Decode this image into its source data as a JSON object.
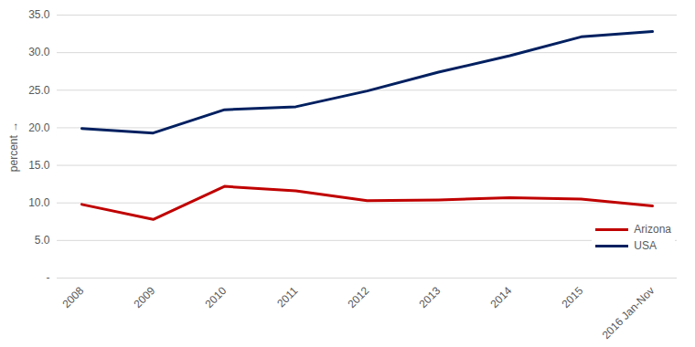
{
  "chart_data": {
    "type": "line",
    "y_label": "percent",
    "categories": [
      "2008",
      "2009",
      "2010",
      "2011",
      "2012",
      "2013",
      "2014",
      "2015",
      "2016 Jan-Nov"
    ],
    "series": [
      {
        "name": "Arizona",
        "color": "#c00000",
        "values": [
          9.8,
          7.8,
          12.2,
          11.6,
          10.3,
          10.4,
          10.7,
          10.5,
          9.6
        ]
      },
      {
        "name": "USA",
        "color": "#002060",
        "values": [
          19.9,
          19.3,
          22.4,
          22.8,
          24.9,
          27.4,
          29.6,
          32.1,
          32.8
        ]
      }
    ],
    "ylim": [
      0,
      35
    ],
    "yticks": [
      {
        "value": 0,
        "label": "-"
      },
      {
        "value": 5,
        "label": "5.0"
      },
      {
        "value": 10,
        "label": "10.0"
      },
      {
        "value": 15,
        "label": "15.0"
      },
      {
        "value": 20,
        "label": "20.0"
      },
      {
        "value": 25,
        "label": "25.0"
      },
      {
        "value": 30,
        "label": "30.0"
      },
      {
        "value": 35,
        "label": "35.0"
      }
    ],
    "grid": true,
    "legend": "lower right"
  }
}
